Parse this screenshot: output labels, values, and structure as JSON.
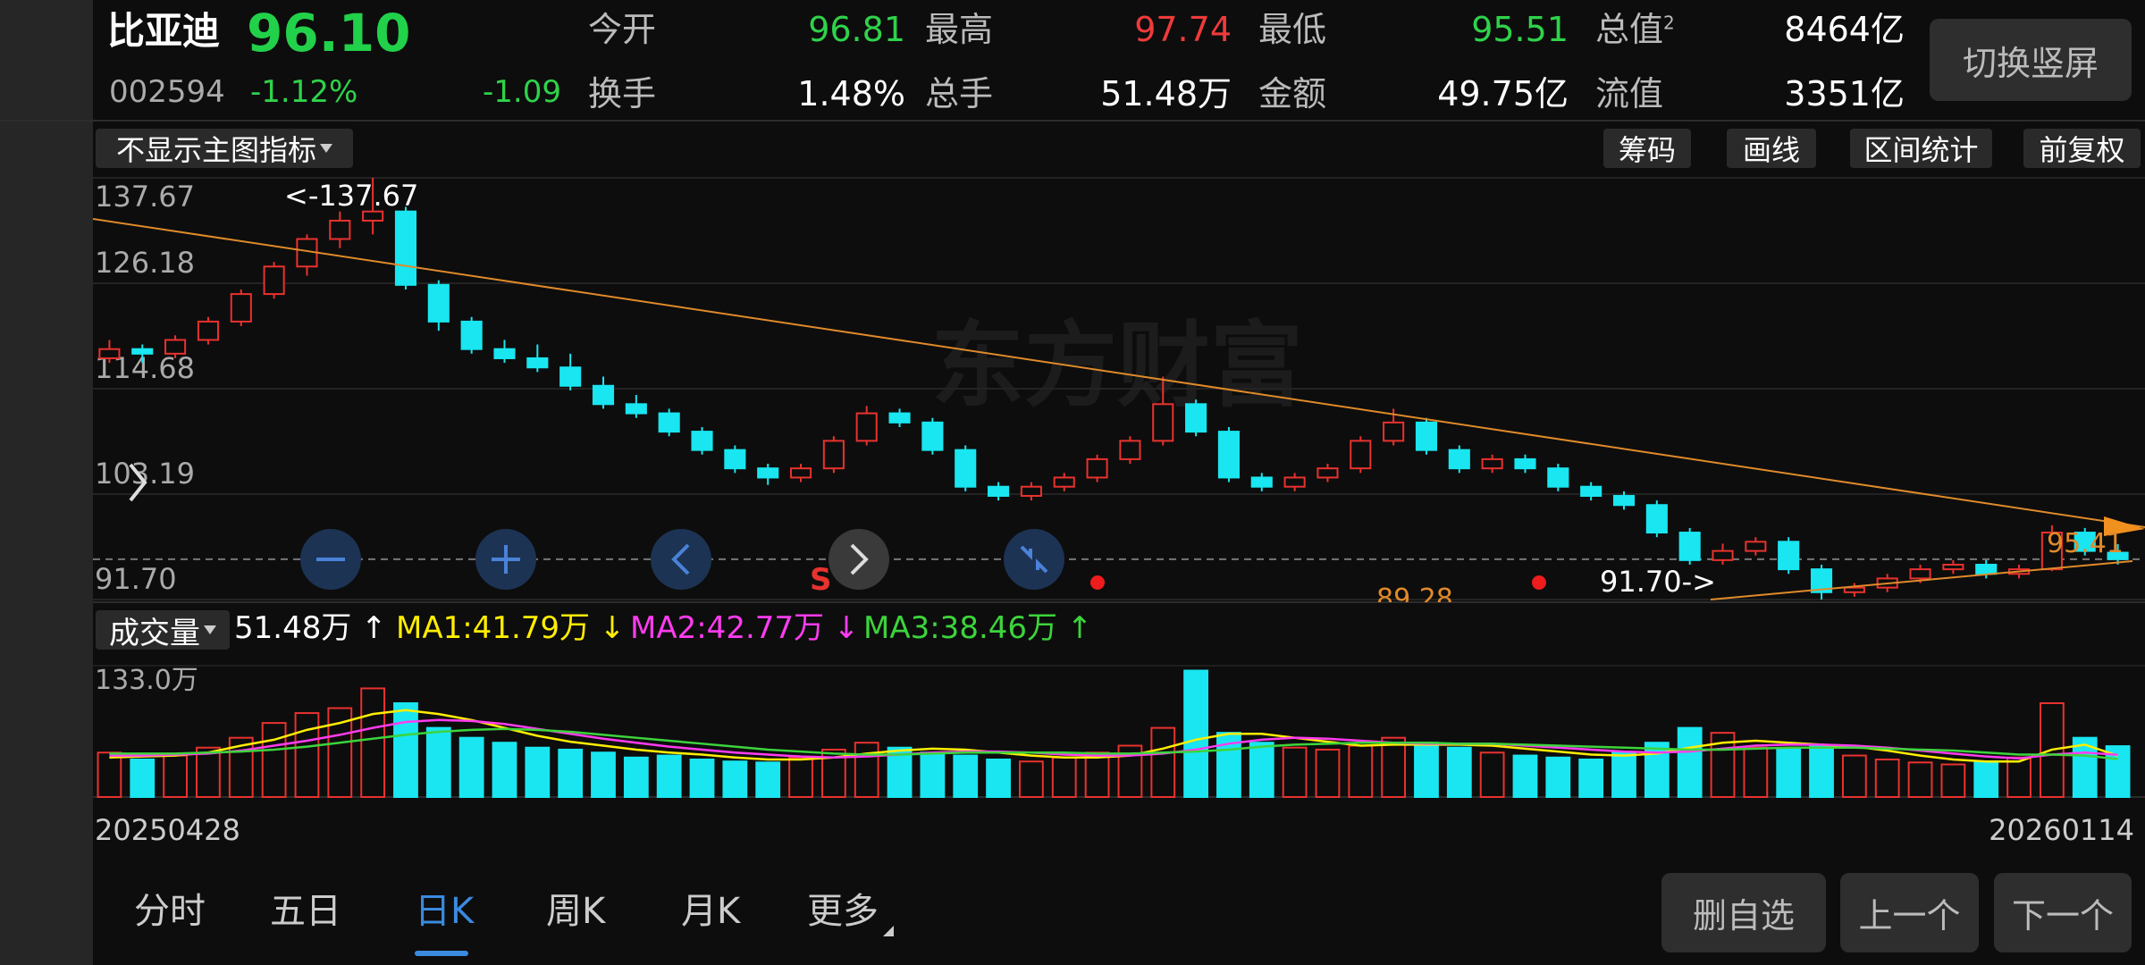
{
  "header": {
    "name": "比亚迪",
    "price": "96.10",
    "code": "002594",
    "change_pct": "-1.12%",
    "change": "-1.09",
    "stats": [
      [
        {
          "label": "今开",
          "value": "96.81",
          "color": "#2fd24a"
        },
        {
          "label": "最高",
          "value": "97.74",
          "color": "#f03a3a"
        },
        {
          "label": "最低",
          "value": "95.51",
          "color": "#2fd24a"
        },
        {
          "label": "总值",
          "sup": "2",
          "value": "8464亿",
          "color": "#ffffff"
        }
      ],
      [
        {
          "label": "换手",
          "value": "1.48%",
          "color": "#ffffff"
        },
        {
          "label": "总手",
          "value": "51.48万",
          "color": "#ffffff"
        },
        {
          "label": "金额",
          "value": "49.75亿",
          "color": "#ffffff"
        },
        {
          "label": "流值",
          "value": "3351亿",
          "color": "#ffffff"
        }
      ]
    ],
    "orientation_button": "切换竖屏"
  },
  "toolbar": {
    "indicator_select": "不显示主图指标",
    "buttons": [
      "筹码",
      "画线",
      "区间统计",
      "前复权"
    ]
  },
  "watermark": "东方财富",
  "annotations": {
    "high": "<-137.67",
    "low": "91.70->",
    "trend_low": "89.28",
    "trend_right": "95.41",
    "signal": "S"
  },
  "chart_data": [
    {
      "type": "candlestick",
      "open": [
        118,
        119,
        118.5,
        120,
        122,
        125,
        128,
        131,
        133,
        134,
        126,
        122,
        119,
        118,
        117,
        115,
        113,
        112,
        110,
        108,
        106,
        105,
        106,
        109,
        112,
        111,
        108,
        104,
        103,
        104,
        105,
        107,
        109,
        113,
        110,
        105,
        104,
        105,
        106,
        109,
        111,
        108,
        106,
        107,
        106,
        104,
        103,
        102,
        99,
        96,
        97,
        98,
        95,
        92.5,
        93,
        94,
        95,
        95.5,
        94.5,
        95,
        99,
        96.81
      ],
      "high": [
        120,
        119.5,
        120.5,
        122.5,
        125.5,
        128.5,
        131.5,
        134,
        137.67,
        134.5,
        126.5,
        122.5,
        120,
        119.5,
        118.5,
        116,
        114,
        112.5,
        110.5,
        108.5,
        106.5,
        106.5,
        109.5,
        112.8,
        112.5,
        111.5,
        108.5,
        104.5,
        104.5,
        105.5,
        107.5,
        109.5,
        116,
        113.5,
        110.5,
        105.5,
        105.5,
        106.5,
        109.5,
        112.5,
        111.5,
        108.5,
        107.5,
        107.5,
        106.5,
        104.5,
        103.5,
        102.5,
        99.5,
        97.8,
        98.5,
        98.5,
        95.5,
        93.5,
        94.5,
        95.5,
        96,
        96,
        95.5,
        99.8,
        99.5,
        97.74
      ],
      "low": [
        117.5,
        117.5,
        118,
        119.5,
        121.5,
        124.5,
        127,
        130,
        131.5,
        125.5,
        121,
        118.5,
        117.5,
        116.5,
        114.5,
        112.5,
        111.5,
        109.5,
        107.5,
        105.5,
        104.2,
        104.5,
        105.5,
        108.5,
        110.5,
        107.5,
        103.5,
        102.5,
        102.5,
        103.5,
        104.5,
        106.5,
        108.5,
        109.5,
        104.5,
        103.5,
        103.5,
        104.5,
        105.5,
        108.5,
        107.5,
        105.5,
        105.5,
        105.5,
        103.5,
        102.5,
        101.5,
        98.5,
        95.5,
        95.5,
        96.5,
        94.5,
        91.7,
        92,
        92.5,
        93.5,
        94.5,
        94,
        94,
        94.8,
        96.5,
        95.51
      ],
      "close": [
        119,
        118.5,
        120,
        122,
        125,
        128,
        131,
        133,
        134,
        126,
        122,
        119,
        118,
        117,
        115,
        113,
        112,
        110,
        108,
        106,
        105,
        106,
        109,
        112,
        111,
        108,
        104,
        103,
        104,
        105,
        107,
        109,
        113,
        110,
        105,
        104,
        105,
        106,
        109,
        111,
        108,
        106,
        107,
        106,
        104,
        103,
        102,
        99,
        96,
        97,
        98,
        95,
        92.5,
        93,
        94,
        95,
        95.5,
        94.5,
        95,
        99,
        97,
        96.1
      ],
      "up_color": "#e8322e",
      "down_color": "#19e6f0",
      "last_price": 96.1,
      "ylim": [
        91.7,
        137.67
      ],
      "yticks": [
        {
          "value": 91.7,
          "label": "91.70"
        },
        103.19,
        114.68,
        126.18,
        137.67
      ],
      "grid": true
    },
    {
      "type": "bar",
      "volume_select": "成交量",
      "legend": [
        "51.48万 ↑",
        "MA1:41.79万 ↓",
        "MA2:42.77万 ↓",
        "MA3:38.46万 ↑"
      ],
      "categories": [
        "20250428",
        null,
        null,
        null,
        null,
        null,
        null,
        null,
        null,
        null,
        null,
        null,
        null,
        null,
        null,
        null,
        null,
        null,
        null,
        null,
        null,
        null,
        null,
        null,
        null,
        null,
        null,
        null,
        null,
        null,
        null,
        null,
        null,
        null,
        null,
        null,
        null,
        null,
        null,
        null,
        null,
        null,
        null,
        null,
        null,
        null,
        null,
        null,
        null,
        null,
        null,
        null,
        null,
        null,
        null,
        null,
        null,
        null,
        null,
        null,
        null,
        "20260114"
      ],
      "values": [
        45,
        38,
        42,
        50,
        60,
        75,
        85,
        90,
        110,
        95,
        70,
        60,
        55,
        50,
        48,
        45,
        40,
        42,
        38,
        36,
        35,
        40,
        48,
        55,
        50,
        45,
        42,
        38,
        36,
        40,
        45,
        52,
        70,
        128,
        65,
        55,
        50,
        48,
        52,
        60,
        55,
        50,
        45,
        42,
        40,
        38,
        45,
        55,
        70,
        65,
        50,
        48,
        52,
        42,
        38,
        35,
        33,
        36,
        40,
        95,
        60,
        51.48
      ],
      "series": [
        {
          "color": "#ffee00",
          "values": [
            40,
            41,
            42,
            45,
            52,
            58,
            68,
            75,
            84,
            88,
            84,
            78,
            70,
            62,
            56,
            52,
            48,
            45,
            43,
            40,
            38,
            38,
            40,
            44,
            47,
            49,
            48,
            45,
            42,
            40,
            40,
            42,
            49,
            58,
            64,
            64,
            60,
            56,
            52,
            53,
            53,
            53,
            52,
            49,
            46,
            43,
            42,
            44,
            50,
            55,
            57,
            55,
            53,
            51,
            47,
            42,
            38,
            36,
            36,
            48,
            53,
            41.79
          ]
        },
        {
          "color": "#ff3cf0",
          "values": [
            42,
            42,
            43,
            44,
            47,
            52,
            57,
            63,
            70,
            76,
            78,
            77,
            74,
            69,
            64,
            59,
            55,
            51,
            48,
            45,
            43,
            41,
            40,
            41,
            43,
            45,
            46,
            46,
            45,
            43,
            42,
            42,
            44,
            48,
            54,
            58,
            60,
            59,
            57,
            55,
            54,
            54,
            54,
            52,
            50,
            48,
            46,
            45,
            46,
            49,
            52,
            53,
            53,
            52,
            50,
            47,
            44,
            41,
            39,
            43,
            45,
            42.77
          ]
        },
        {
          "color": "#3cd43c",
          "values": [
            44,
            44,
            44,
            45,
            46,
            48,
            51,
            55,
            59,
            63,
            66,
            68,
            69,
            68,
            66,
            63,
            60,
            57,
            54,
            51,
            48,
            46,
            44,
            43,
            43,
            44,
            45,
            45,
            45,
            45,
            44,
            44,
            45,
            46,
            48,
            51,
            53,
            54,
            55,
            55,
            55,
            54,
            54,
            53,
            52,
            51,
            50,
            49,
            48,
            48,
            49,
            50,
            50,
            50,
            49,
            48,
            47,
            45,
            43,
            43,
            42,
            38.46
          ]
        }
      ],
      "legend_colors": [
        "#ffffff",
        "#ffee00",
        "#ff3cf0",
        "#3cd43c"
      ],
      "ylim": [
        0,
        133
      ],
      "yticks": [
        {
          "value": 133,
          "label": "133.0万"
        }
      ]
    }
  ],
  "tabs": [
    "分时",
    "五日",
    "日K",
    "周K",
    "月K",
    "更多"
  ],
  "active_tab": 2,
  "footer_buttons": [
    "删自选",
    "上一个",
    "下一个"
  ]
}
